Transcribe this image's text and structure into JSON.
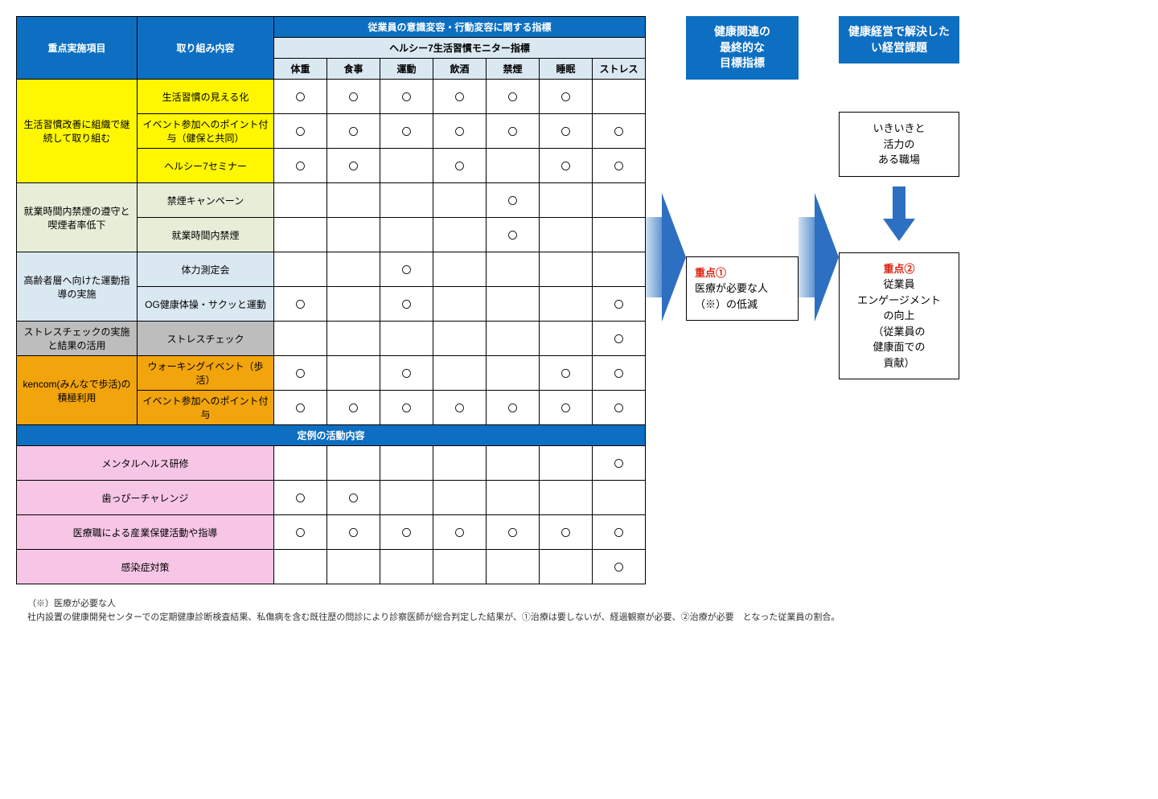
{
  "colors": {
    "header_blue": "#0d6fc1",
    "header_light": "#dae8f2",
    "yellow": "#fff700",
    "ltgreen": "#e6eed8",
    "ltblue2": "#dae8f2",
    "gray": "#bdbdbd",
    "orange": "#f2a40c",
    "pink": "#f7c6e6",
    "arrow_fill": "#2d6fc1",
    "accent_red": "#d21"
  },
  "mark": "〇",
  "headers": {
    "col1": "重点実施項目",
    "col2": "取り組み内容",
    "group_top": "従業員の意識変容・行動変容に関する指標",
    "group_sub": "ヘルシー7生活習慣モニター指標",
    "metrics": [
      "体重",
      "食事",
      "運動",
      "飲酒",
      "禁煙",
      "睡眠",
      "ストレス"
    ]
  },
  "sections": [
    {
      "category_color": "yellow",
      "category_label": "生活習慣改善に組織で継続して取り組む",
      "rows": [
        {
          "label": "生活習慣の見える化",
          "label_color": "yellow",
          "marks": [
            true,
            true,
            true,
            true,
            true,
            true,
            false
          ]
        },
        {
          "label": "イベント参加へのポイント付与（健保と共同）",
          "label_color": "yellow",
          "marks": [
            true,
            true,
            true,
            true,
            true,
            true,
            true
          ]
        },
        {
          "label": "ヘルシー7セミナー",
          "label_color": "yellow",
          "marks": [
            true,
            true,
            false,
            true,
            false,
            true,
            true
          ]
        }
      ]
    },
    {
      "category_color": "ltgreen",
      "category_label": "就業時間内禁煙の遵守と喫煙者率低下",
      "rows": [
        {
          "label": "禁煙キャンペーン",
          "label_color": "ltgreen",
          "marks": [
            false,
            false,
            false,
            false,
            true,
            false,
            false
          ]
        },
        {
          "label": "就業時間内禁煙",
          "label_color": "ltgreen",
          "marks": [
            false,
            false,
            false,
            false,
            true,
            false,
            false
          ]
        }
      ]
    },
    {
      "category_color": "ltblue2",
      "category_label": "高齢者層へ向けた運動指導の実施",
      "rows": [
        {
          "label": "体力測定会",
          "label_color": "ltblue2",
          "marks": [
            false,
            false,
            true,
            false,
            false,
            false,
            false
          ]
        },
        {
          "label": "OG健康体操・サクッと運動",
          "label_color": "ltblue2",
          "marks": [
            true,
            false,
            true,
            false,
            false,
            false,
            true
          ]
        }
      ]
    },
    {
      "category_color": "gray",
      "category_label": "ストレスチェックの実施と結果の活用",
      "rows": [
        {
          "label": "ストレスチェック",
          "label_color": "gray",
          "marks": [
            false,
            false,
            false,
            false,
            false,
            false,
            true
          ]
        }
      ]
    },
    {
      "category_color": "orange",
      "category_label": "kencom(みんなで歩活)の積極利用",
      "rows": [
        {
          "label": "ウォーキングイベント（歩活）",
          "label_color": "orange",
          "marks": [
            true,
            false,
            true,
            false,
            false,
            true,
            true
          ]
        },
        {
          "label": "イベント参加へのポイント付与",
          "label_color": "orange",
          "marks": [
            true,
            true,
            true,
            true,
            true,
            true,
            true
          ]
        }
      ]
    }
  ],
  "regular_banner": "定例の活動内容",
  "regular_rows": [
    {
      "label": "メンタルヘルス研修",
      "marks": [
        false,
        false,
        false,
        false,
        false,
        false,
        true
      ]
    },
    {
      "label": "歯っぴーチャレンジ",
      "marks": [
        true,
        true,
        false,
        false,
        false,
        false,
        false
      ]
    },
    {
      "label": "医療職による産業保健活動や指導",
      "marks": [
        true,
        true,
        true,
        true,
        true,
        true,
        true
      ]
    },
    {
      "label": "感染症対策",
      "marks": [
        false,
        false,
        false,
        false,
        false,
        false,
        true
      ]
    }
  ],
  "side1": {
    "header": "健康関連の\n最終的な\n目標指標",
    "body_red": "重点①",
    "body_text": "医療が必要な人（※）の低減"
  },
  "side2": {
    "header": "健康経営で解決したい経営課題",
    "box1": "いきいきと\n活力の\nある職場",
    "box2_red": "重点②",
    "box2_text": "従業員\nエンゲージメント\nの向上\n（従業員の\n健康面での\n貢献）"
  },
  "footnote": {
    "line1": "（※）医療が必要な人",
    "line2": "社内設置の健康開発センターでの定期健康診断検査結果、私傷病を含む既往歴の問診により診察医師が総合判定した結果が、①治療は要しないが、経過観察が必要、②治療が必要　となった従業員の割合。"
  }
}
